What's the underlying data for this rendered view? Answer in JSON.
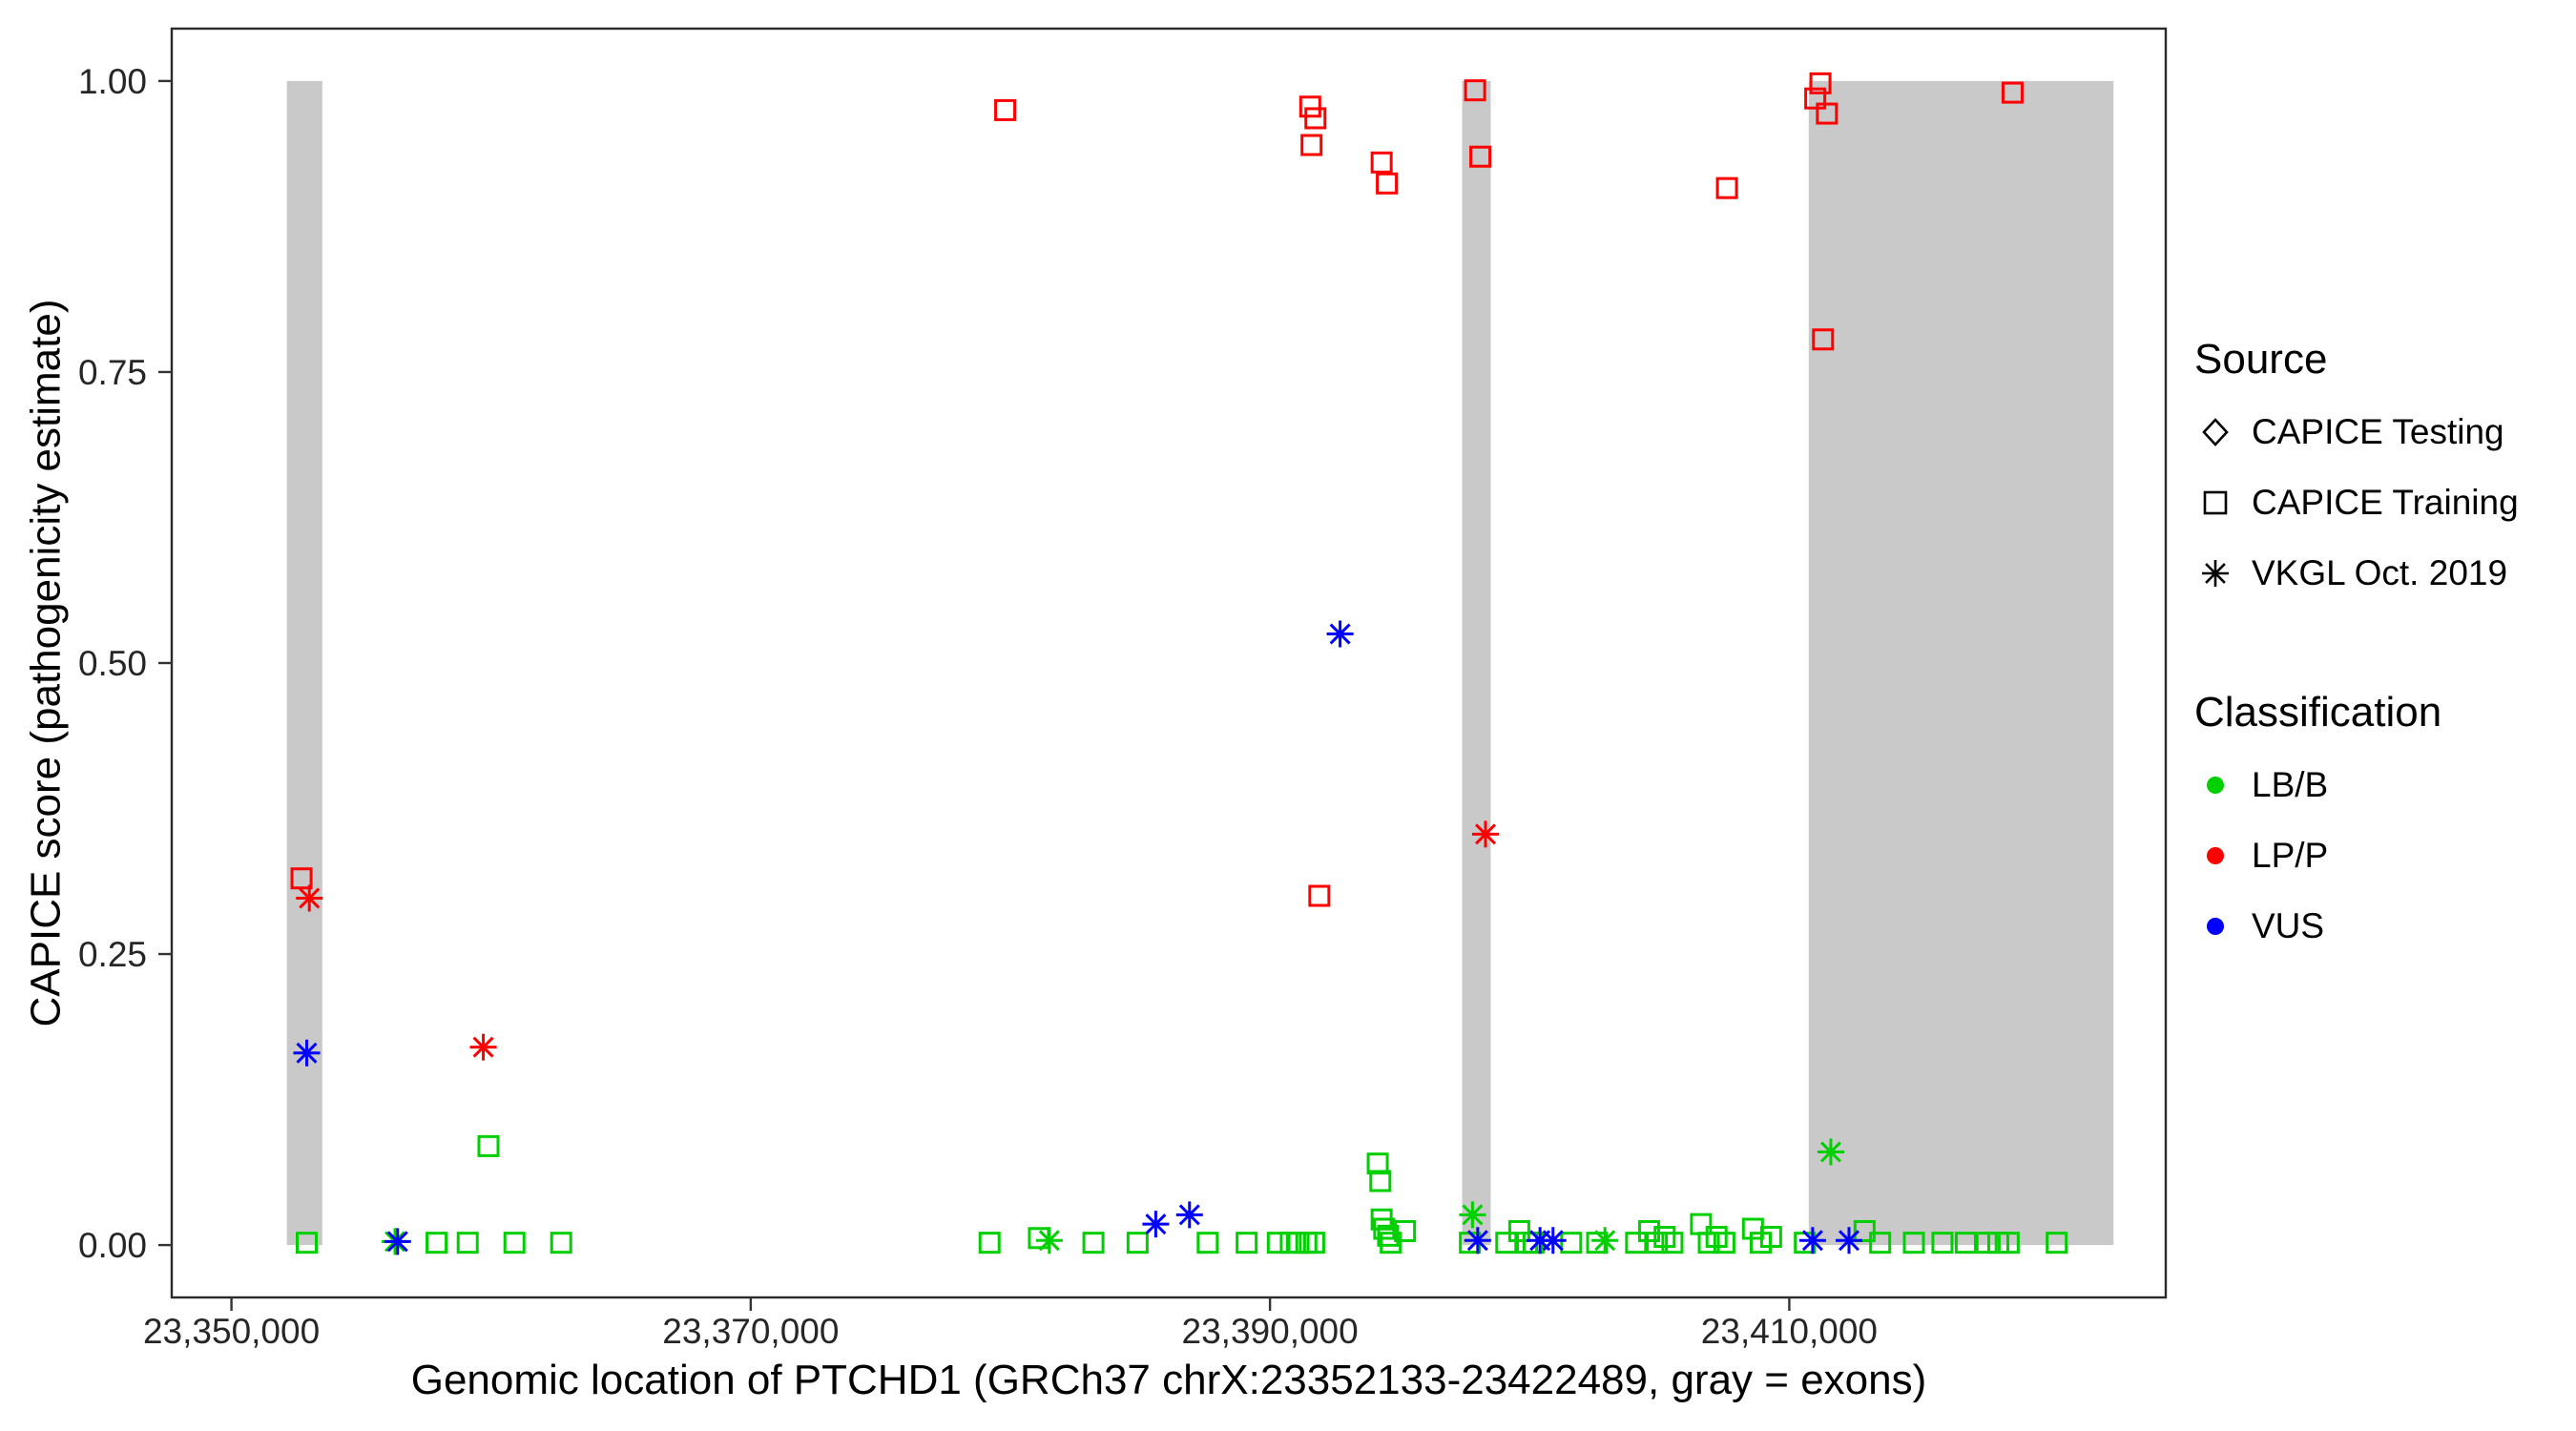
{
  "chart_data": {
    "type": "scatter",
    "x_axis": {
      "label": "Genomic location of PTCHD1 (GRCh37 chrX:23352133-23422489, gray = exons)",
      "ticks": [
        {
          "value": 23350000,
          "label": "23,350,000"
        },
        {
          "value": 23370000,
          "label": "23,370,000"
        },
        {
          "value": 23390000,
          "label": "23,390,000"
        },
        {
          "value": 23410000,
          "label": "23,410,000"
        }
      ]
    },
    "y_axis": {
      "label": "CAPICE score (pathogenicity estimate)",
      "ticks": [
        {
          "value": 0,
          "label": "0.00"
        },
        {
          "value": 0.25,
          "label": "0.25"
        },
        {
          "value": 0.5,
          "label": "0.50"
        },
        {
          "value": 0.75,
          "label": "0.75"
        },
        {
          "value": 1,
          "label": "1.00"
        }
      ]
    },
    "xlim": [
      23347700,
      23424500
    ],
    "ylim": [
      -0.045,
      1.045
    ],
    "grid": "off",
    "exons": [
      [
        23352133,
        23353500
      ],
      [
        23397400,
        23398500
      ],
      [
        23410750,
        23422489
      ]
    ],
    "colors": {
      "LB/B": "#00cf00",
      "LP/P": "#ff0000",
      "VUS": "#0000ff",
      "exon": "#c9c9c9"
    },
    "shape_map": {
      "sq": "CAPICE Training",
      "ast": "VKGL Oct. 2019",
      "di": "CAPICE Testing"
    },
    "points_columns": [
      "x",
      "y",
      "shape",
      "classification"
    ],
    "points": [
      [
        23352700,
        0.315,
        "sq",
        "LP/P"
      ],
      [
        23379800,
        0.975,
        "sq",
        "LP/P"
      ],
      [
        23391550,
        0.978,
        "sq",
        "LP/P"
      ],
      [
        23391750,
        0.968,
        "sq",
        "LP/P"
      ],
      [
        23391600,
        0.945,
        "sq",
        "LP/P"
      ],
      [
        23394300,
        0.93,
        "sq",
        "LP/P"
      ],
      [
        23394500,
        0.912,
        "sq",
        "LP/P"
      ],
      [
        23391900,
        0.3,
        "sq",
        "LP/P"
      ],
      [
        23397900,
        0.992,
        "sq",
        "LP/P"
      ],
      [
        23398100,
        0.935,
        "sq",
        "LP/P"
      ],
      [
        23407600,
        0.908,
        "sq",
        "LP/P"
      ],
      [
        23411000,
        0.985,
        "sq",
        "LP/P"
      ],
      [
        23411200,
        0.998,
        "sq",
        "LP/P"
      ],
      [
        23411450,
        0.972,
        "sq",
        "LP/P"
      ],
      [
        23411300,
        0.778,
        "sq",
        "LP/P"
      ],
      [
        23418600,
        0.99,
        "sq",
        "LP/P"
      ],
      [
        23352900,
        0.002,
        "sq",
        "LB/B"
      ],
      [
        23357900,
        0.002,
        "sq",
        "LB/B"
      ],
      [
        23359100,
        0.002,
        "sq",
        "LB/B"
      ],
      [
        23359900,
        0.085,
        "sq",
        "LB/B"
      ],
      [
        23360900,
        0.002,
        "sq",
        "LB/B"
      ],
      [
        23362700,
        0.002,
        "sq",
        "LB/B"
      ],
      [
        23379200,
        0.002,
        "sq",
        "LB/B"
      ],
      [
        23381100,
        0.006,
        "sq",
        "LB/B"
      ],
      [
        23383200,
        0.002,
        "sq",
        "LB/B"
      ],
      [
        23384900,
        0.002,
        "sq",
        "LB/B"
      ],
      [
        23387600,
        0.002,
        "sq",
        "LB/B"
      ],
      [
        23389100,
        0.002,
        "sq",
        "LB/B"
      ],
      [
        23390300,
        0.002,
        "sq",
        "LB/B"
      ],
      [
        23390800,
        0.002,
        "sq",
        "LB/B"
      ],
      [
        23391100,
        0.002,
        "sq",
        "LB/B"
      ],
      [
        23391400,
        0.002,
        "sq",
        "LB/B"
      ],
      [
        23391700,
        0.002,
        "sq",
        "LB/B"
      ],
      [
        23394150,
        0.07,
        "sq",
        "LB/B"
      ],
      [
        23394250,
        0.055,
        "sq",
        "LB/B"
      ],
      [
        23394300,
        0.022,
        "sq",
        "LB/B"
      ],
      [
        23394400,
        0.014,
        "sq",
        "LB/B"
      ],
      [
        23394550,
        0.008,
        "sq",
        "LB/B"
      ],
      [
        23394650,
        0.002,
        "sq",
        "LB/B"
      ],
      [
        23395200,
        0.012,
        "sq",
        "LB/B"
      ],
      [
        23397700,
        0.002,
        "sq",
        "LB/B"
      ],
      [
        23399100,
        0.002,
        "sq",
        "LB/B"
      ],
      [
        23399600,
        0.012,
        "sq",
        "LB/B"
      ],
      [
        23399900,
        0.002,
        "sq",
        "LB/B"
      ],
      [
        23400150,
        0.002,
        "sq",
        "LB/B"
      ],
      [
        23401600,
        0.002,
        "sq",
        "LB/B"
      ],
      [
        23402600,
        0.002,
        "sq",
        "LB/B"
      ],
      [
        23404100,
        0.002,
        "sq",
        "LB/B"
      ],
      [
        23404600,
        0.012,
        "sq",
        "LB/B"
      ],
      [
        23404900,
        0.002,
        "sq",
        "LB/B"
      ],
      [
        23405200,
        0.007,
        "sq",
        "LB/B"
      ],
      [
        23405500,
        0.002,
        "sq",
        "LB/B"
      ],
      [
        23406600,
        0.018,
        "sq",
        "LB/B"
      ],
      [
        23406900,
        0.002,
        "sq",
        "LB/B"
      ],
      [
        23407200,
        0.007,
        "sq",
        "LB/B"
      ],
      [
        23407500,
        0.002,
        "sq",
        "LB/B"
      ],
      [
        23408600,
        0.014,
        "sq",
        "LB/B"
      ],
      [
        23408900,
        0.002,
        "sq",
        "LB/B"
      ],
      [
        23409300,
        0.007,
        "sq",
        "LB/B"
      ],
      [
        23410600,
        0.002,
        "sq",
        "LB/B"
      ],
      [
        23412900,
        0.012,
        "sq",
        "LB/B"
      ],
      [
        23413500,
        0.002,
        "sq",
        "LB/B"
      ],
      [
        23414800,
        0.002,
        "sq",
        "LB/B"
      ],
      [
        23415900,
        0.002,
        "sq",
        "LB/B"
      ],
      [
        23416800,
        0.002,
        "sq",
        "LB/B"
      ],
      [
        23417600,
        0.002,
        "sq",
        "LB/B"
      ],
      [
        23418050,
        0.002,
        "sq",
        "LB/B"
      ],
      [
        23418450,
        0.002,
        "sq",
        "LB/B"
      ],
      [
        23420300,
        0.002,
        "sq",
        "LB/B"
      ],
      [
        23356300,
        0.003,
        "ast",
        "LB/B"
      ],
      [
        23381500,
        0.004,
        "ast",
        "LB/B"
      ],
      [
        23397800,
        0.026,
        "ast",
        "LB/B"
      ],
      [
        23402900,
        0.004,
        "ast",
        "LB/B"
      ],
      [
        23411600,
        0.08,
        "ast",
        "LB/B"
      ],
      [
        23353000,
        0.298,
        "ast",
        "LP/P"
      ],
      [
        23359700,
        0.17,
        "ast",
        "LP/P"
      ],
      [
        23398300,
        0.353,
        "ast",
        "LP/P"
      ],
      [
        23352900,
        0.165,
        "ast",
        "VUS"
      ],
      [
        23356400,
        0.003,
        "ast",
        "VUS"
      ],
      [
        23385600,
        0.018,
        "ast",
        "VUS"
      ],
      [
        23386900,
        0.026,
        "ast",
        "VUS"
      ],
      [
        23392700,
        0.525,
        "ast",
        "VUS"
      ],
      [
        23398000,
        0.004,
        "ast",
        "VUS"
      ],
      [
        23400400,
        0.004,
        "ast",
        "VUS"
      ],
      [
        23400900,
        0.004,
        "ast",
        "VUS"
      ],
      [
        23410900,
        0.004,
        "ast",
        "VUS"
      ],
      [
        23412300,
        0.004,
        "ast",
        "VUS"
      ]
    ],
    "legend": {
      "source": {
        "title": "Source",
        "items": [
          {
            "label": "CAPICE Testing",
            "shape": "di"
          },
          {
            "label": "CAPICE Training",
            "shape": "sq"
          },
          {
            "label": "VKGL Oct. 2019",
            "shape": "ast"
          }
        ]
      },
      "classification": {
        "title": "Classification",
        "items": [
          {
            "label": "LB/B",
            "color_key": "LB/B"
          },
          {
            "label": "LP/P",
            "color_key": "LP/P"
          },
          {
            "label": "VUS",
            "color_key": "VUS"
          }
        ]
      }
    }
  }
}
